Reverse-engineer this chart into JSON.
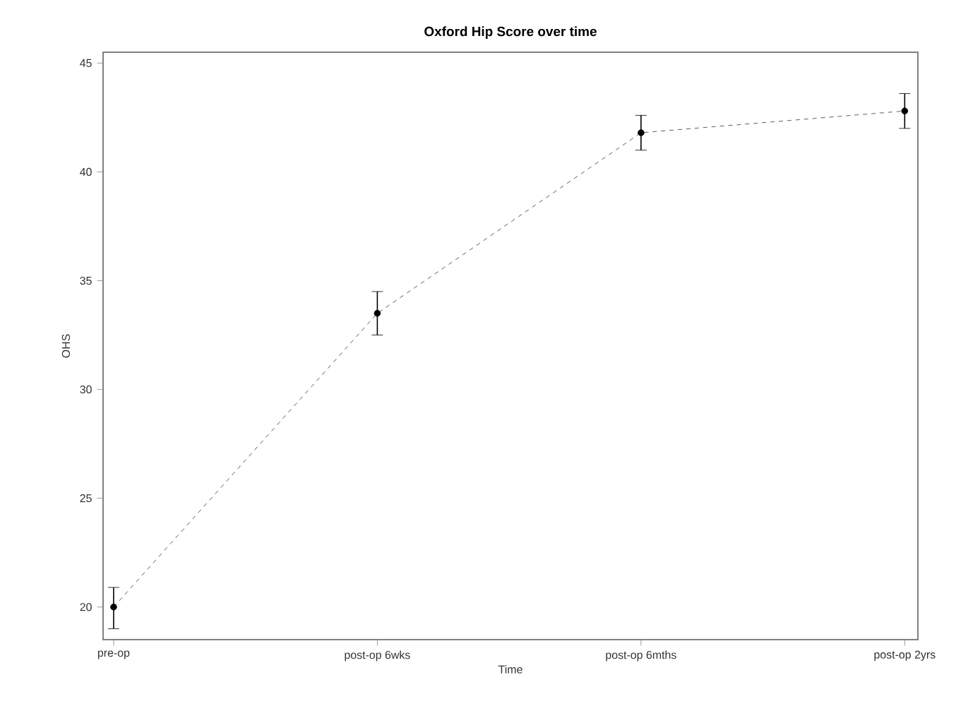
{
  "chart_data": {
    "type": "line",
    "title": "Oxford Hip Score over time",
    "xlabel": "Time",
    "ylabel": "OHS",
    "categories": [
      "pre-op",
      "post-op 6wks",
      "post-op 6mths",
      "post-op 2yrs"
    ],
    "values": [
      20,
      33.5,
      41.8,
      42.8
    ],
    "errors": [
      [
        19.0,
        20.9
      ],
      [
        32.5,
        34.5
      ],
      [
        41.0,
        42.6
      ],
      [
        42.0,
        43.6
      ]
    ],
    "color": "#333333",
    "marker": "circle",
    "line_style": "dashed",
    "ylim": [
      18.5,
      45.5
    ],
    "yticks": [
      20,
      25,
      30,
      35,
      40,
      45
    ],
    "grid": false
  }
}
